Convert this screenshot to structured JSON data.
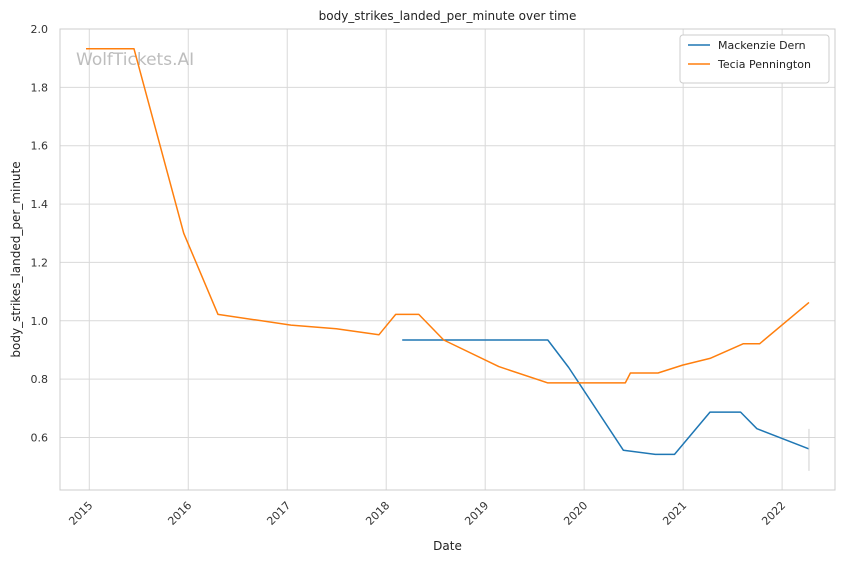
{
  "chart_data": {
    "type": "line",
    "title": "body_strikes_landed_per_minute over time",
    "xlabel": "Date",
    "ylabel": "body_strikes_landed_per_minute",
    "watermark": "WolfTickets.AI",
    "x_ticks": [
      "2015",
      "2016",
      "2017",
      "2018",
      "2019",
      "2020",
      "2021",
      "2022"
    ],
    "y_ticks": [
      "0.6",
      "0.8",
      "1.0",
      "1.2",
      "1.4",
      "1.6",
      "1.8",
      "2.0"
    ],
    "xlim": [
      "2014-09-15",
      "2022-07-15"
    ],
    "ylim": [
      0.42,
      2.0
    ],
    "grid": true,
    "legend_position": "top-right",
    "series": [
      {
        "name": "Mackenzie Dern",
        "color": "#1f77b4",
        "points": [
          {
            "x": "2018-03-01",
            "y": 0.934
          },
          {
            "x": "2019-08-20",
            "y": 0.934
          },
          {
            "x": "2019-11-05",
            "y": 0.84
          },
          {
            "x": "2020-05-25",
            "y": 0.556
          },
          {
            "x": "2020-09-20",
            "y": 0.542
          },
          {
            "x": "2020-11-30",
            "y": 0.542
          },
          {
            "x": "2021-04-10",
            "y": 0.687
          },
          {
            "x": "2021-08-01",
            "y": 0.687
          },
          {
            "x": "2021-09-30",
            "y": 0.63
          },
          {
            "x": "2022-04-10",
            "y": 0.561
          }
        ]
      },
      {
        "name": "Tecia Pennington",
        "color": "#ff7f0e",
        "points": [
          {
            "x": "2014-12-20",
            "y": 1.932
          },
          {
            "x": "2015-06-15",
            "y": 1.932
          },
          {
            "x": "2015-12-15",
            "y": 1.3
          },
          {
            "x": "2016-04-20",
            "y": 1.022
          },
          {
            "x": "2017-01-15",
            "y": 0.985
          },
          {
            "x": "2017-07-01",
            "y": 0.973
          },
          {
            "x": "2017-12-05",
            "y": 0.952
          },
          {
            "x": "2018-02-05",
            "y": 1.022
          },
          {
            "x": "2018-05-01",
            "y": 1.022
          },
          {
            "x": "2018-08-01",
            "y": 0.934
          },
          {
            "x": "2019-02-20",
            "y": 0.843
          },
          {
            "x": "2019-08-20",
            "y": 0.787
          },
          {
            "x": "2020-06-01",
            "y": 0.787
          },
          {
            "x": "2020-06-20",
            "y": 0.821
          },
          {
            "x": "2020-09-30",
            "y": 0.821
          },
          {
            "x": "2020-12-30",
            "y": 0.848
          },
          {
            "x": "2021-04-10",
            "y": 0.871
          },
          {
            "x": "2021-08-10",
            "y": 0.921
          },
          {
            "x": "2021-10-10",
            "y": 0.921
          },
          {
            "x": "2022-04-10",
            "y": 1.063
          }
        ]
      }
    ]
  }
}
